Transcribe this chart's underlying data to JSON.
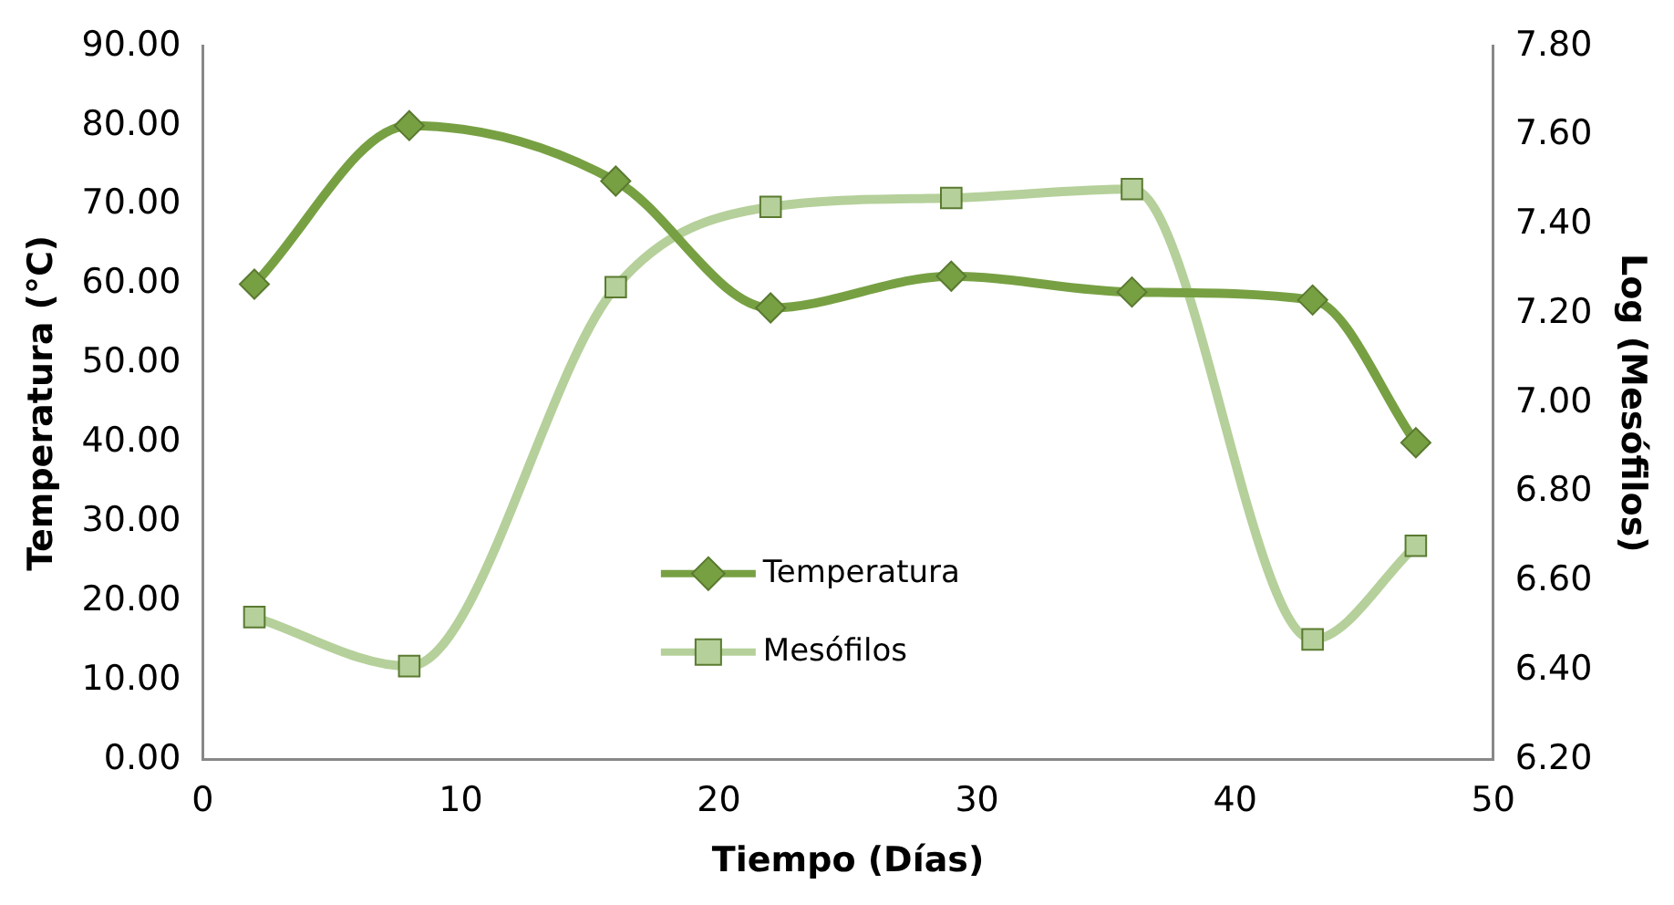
{
  "chart_data": {
    "type": "line",
    "xlabel": "Tiempo (Días)",
    "ylabel": "Temperatura (°C)",
    "y2label": "Log (Mesófilos)",
    "xlim": [
      0,
      50
    ],
    "xticks": [
      0,
      10,
      20,
      30,
      40,
      50
    ],
    "ylim": [
      0,
      90
    ],
    "yticks": [
      {
        "value": 0,
        "label": "0.00"
      },
      {
        "value": 10,
        "label": "10.00"
      },
      {
        "value": 20,
        "label": "20.00"
      },
      {
        "value": 30,
        "label": "30.00"
      },
      {
        "value": 40,
        "label": "40.00"
      },
      {
        "value": 50,
        "label": "50.00"
      },
      {
        "value": 60,
        "label": "60.00"
      },
      {
        "value": 70,
        "label": "70.00"
      },
      {
        "value": 80,
        "label": "80.00"
      },
      {
        "value": 90,
        "label": "90.00"
      }
    ],
    "y2lim": [
      6.2,
      7.8
    ],
    "y2ticks": [
      {
        "value": 6.2,
        "label": "6.20"
      },
      {
        "value": 6.4,
        "label": "6.40"
      },
      {
        "value": 6.6,
        "label": "6.60"
      },
      {
        "value": 6.8,
        "label": "6.80"
      },
      {
        "value": 7.0,
        "label": "7.00"
      },
      {
        "value": 7.2,
        "label": "7.20"
      },
      {
        "value": 7.4,
        "label": "7.40"
      },
      {
        "value": 7.6,
        "label": "7.60"
      },
      {
        "value": 7.8,
        "label": "7.80"
      }
    ],
    "x": [
      2,
      8,
      16,
      22,
      29,
      36,
      43,
      47
    ],
    "grid": false,
    "legend": "bottom",
    "series": [
      {
        "name": "Temperatura",
        "color": "#77a043",
        "marker": "diamond",
        "values": [
          60,
          80,
          73,
          57,
          61,
          59,
          58,
          40
        ]
      },
      {
        "name": "Mesófilos",
        "color": "#b5d09a",
        "marker": "square",
        "axis": "y2",
        "values": [
          6.52,
          6.41,
          7.26,
          7.44,
          7.46,
          7.48,
          6.47,
          6.68
        ]
      }
    ]
  }
}
